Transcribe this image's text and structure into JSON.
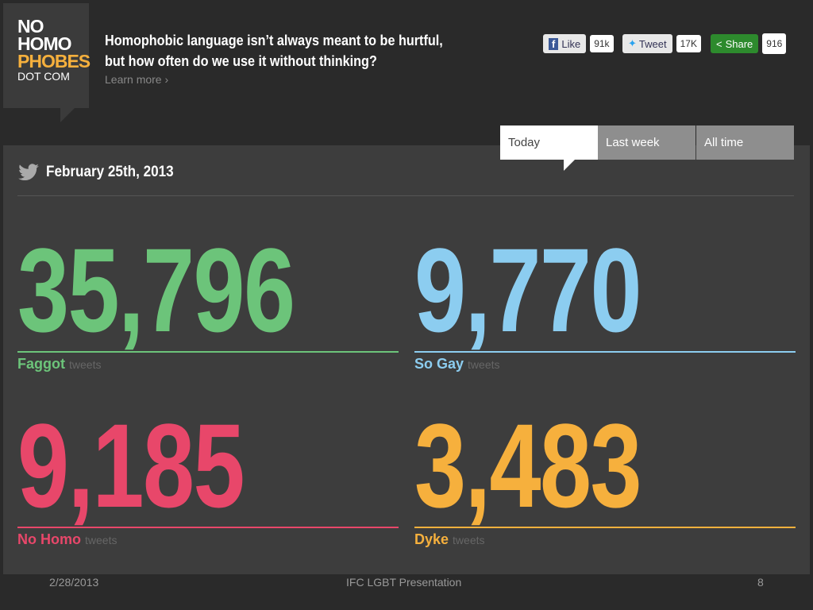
{
  "logo": {
    "lines": [
      "NO",
      "HOMO",
      "PHOBES",
      "DOT COM"
    ]
  },
  "header": {
    "headline": [
      "Homophobic language isn’t always meant to be hurtful,",
      "but how often do we use it without thinking?"
    ],
    "learn_more": "Learn more"
  },
  "social": [
    {
      "label": "Like",
      "count": "91k"
    },
    {
      "label": "Tweet",
      "count": "17K"
    },
    {
      "label": "Share",
      "count": "916"
    }
  ],
  "tabs": [
    "Today",
    "Last week",
    "All time"
  ],
  "date": "February 25th, 2013",
  "stats": [
    {
      "number": "35,796",
      "term": "Faggot",
      "unit": "tweets",
      "color": "#6cc47a"
    },
    {
      "number": "9,770",
      "term": "So Gay",
      "unit": "tweets",
      "color": "#8ccdf0"
    },
    {
      "number": "9,185",
      "term": "No Homo",
      "unit": "tweets",
      "color": "#e8476a"
    },
    {
      "number": "3,483",
      "term": "Dyke",
      "unit": "tweets",
      "color": "#f6b03d"
    }
  ],
  "footer": {
    "date": "2/28/2013",
    "title": "IFC LGBT Presentation",
    "page": "8"
  }
}
